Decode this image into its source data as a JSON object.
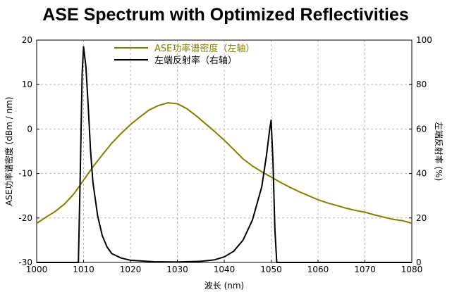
{
  "chart_data": {
    "type": "line",
    "title": "ASE Spectrum with Optimized Reflectivities",
    "xlabel": "波长 (nm)",
    "ylabel_left": "ASE功率谱密度 (dBm / nm)",
    "ylabel_right": "左端反射率 (%)",
    "xlim": [
      1000,
      1080
    ],
    "ylim_left": [
      -30,
      20
    ],
    "ylim_right": [
      0,
      100
    ],
    "x_ticks": [
      1000,
      1010,
      1020,
      1030,
      1040,
      1050,
      1060,
      1070,
      1080
    ],
    "y_ticks_left": [
      -30,
      -20,
      -10,
      0,
      10,
      20
    ],
    "y_ticks_right": [
      0,
      20,
      40,
      60,
      80,
      100
    ],
    "grid": true,
    "legend_position": "top-center",
    "series": [
      {
        "name": "ASE功率谱密度（左轴）",
        "axis": "left",
        "color": "#808000",
        "x": [
          1000,
          1002,
          1004,
          1006,
          1008,
          1010,
          1012,
          1014,
          1016,
          1018,
          1020,
          1022,
          1024,
          1026,
          1028,
          1030,
          1032,
          1034,
          1036,
          1038,
          1040,
          1042,
          1044,
          1046,
          1048,
          1050,
          1052,
          1054,
          1056,
          1058,
          1060,
          1062,
          1064,
          1066,
          1068,
          1070,
          1072,
          1074,
          1076,
          1078,
          1080
        ],
        "y": [
          -21.2,
          -19.8,
          -18.5,
          -16.8,
          -14.5,
          -11.5,
          -8.5,
          -5.8,
          -3.2,
          -1.0,
          1.0,
          2.7,
          4.3,
          5.3,
          5.9,
          5.7,
          4.6,
          3.0,
          1.2,
          -0.6,
          -2.5,
          -4.6,
          -6.7,
          -8.3,
          -9.6,
          -10.8,
          -12.0,
          -13.1,
          -14.1,
          -15.0,
          -15.9,
          -16.6,
          -17.2,
          -17.8,
          -18.3,
          -18.7,
          -19.3,
          -19.8,
          -20.3,
          -20.6,
          -21.2
        ]
      },
      {
        "name": "左端反射率（右轴）",
        "axis": "right",
        "color": "#000000",
        "x": [
          1000,
          1008,
          1008.9,
          1009.3,
          1009.7,
          1010,
          1010.5,
          1011,
          1011.5,
          1012,
          1013,
          1014,
          1015,
          1016,
          1018,
          1020,
          1025,
          1030,
          1035,
          1038,
          1040,
          1042,
          1044,
          1046,
          1048,
          1049,
          1049.7,
          1050,
          1050.4,
          1050.8,
          1051.2,
          1060,
          1080
        ],
        "y": [
          0,
          0,
          0,
          40,
          85,
          97,
          88,
          70,
          50,
          36,
          21,
          12,
          7,
          4,
          2,
          1,
          0.3,
          0.2,
          0.5,
          1.2,
          2.5,
          5,
          10,
          19,
          34,
          48,
          60,
          64,
          45,
          15,
          0,
          0,
          0
        ]
      }
    ]
  }
}
